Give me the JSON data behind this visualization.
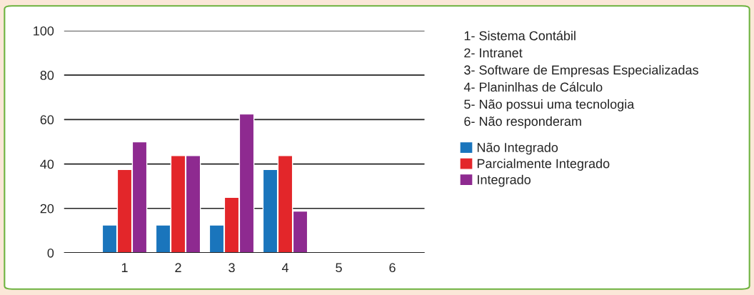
{
  "chart_data": {
    "type": "bar",
    "categories": [
      "1",
      "2",
      "3",
      "4",
      "5",
      "6"
    ],
    "series": [
      {
        "name": "Não Integrado",
        "color": "#1a75bc",
        "values": [
          12.5,
          12.5,
          12.5,
          37.5,
          null,
          null
        ]
      },
      {
        "name": "Parcialmente Integrado",
        "color": "#e3262a",
        "values": [
          37.5,
          43.75,
          25,
          43.75,
          null,
          null
        ]
      },
      {
        "name": "Integrado",
        "color": "#8e2a90",
        "values": [
          50,
          43.75,
          62.5,
          18.75,
          null,
          null
        ]
      }
    ],
    "ylim": [
      0,
      100
    ],
    "yticks": [
      0,
      20,
      40,
      60,
      80,
      100
    ],
    "grid": "y",
    "legend": "right",
    "annotations": [
      "1- Sistema Contábil",
      "2- Intranet",
      "3- Software de Empresas Especializadas",
      "4- Planinlhas de Cálculo",
      "5- Não possui uma tecnologia",
      "6- Não responderam"
    ]
  }
}
